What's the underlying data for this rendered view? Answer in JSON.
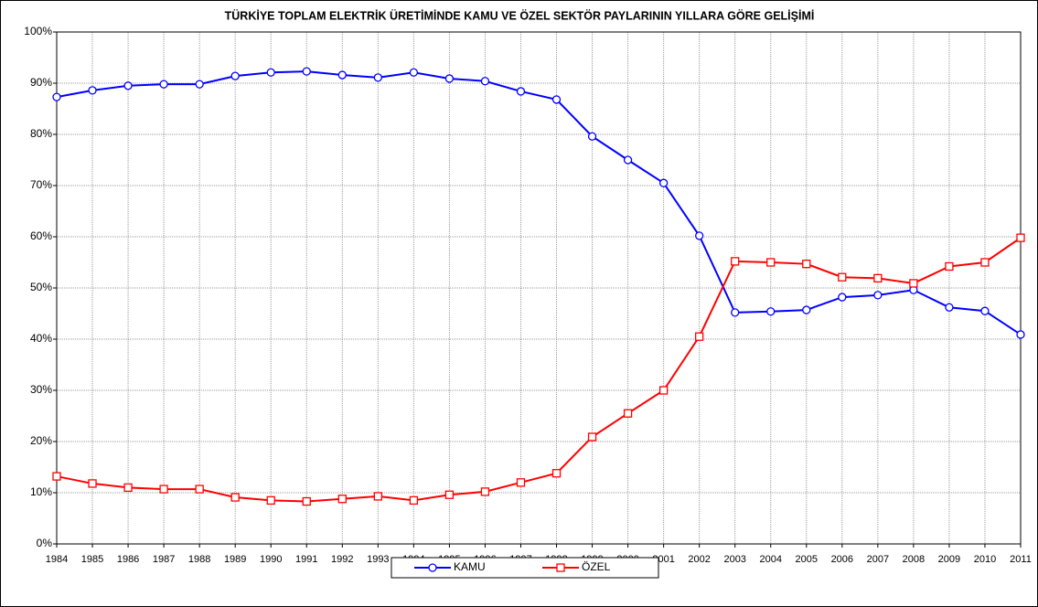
{
  "chart_data": {
    "type": "line",
    "title": "TÜRKİYE TOPLAM ELEKTRİK ÜRETİMİNDE KAMU VE ÖZEL SEKTÖR PAYLARININ YILLARA GÖRE GELİŞİMİ",
    "categories": [
      "1984",
      "1985",
      "1986",
      "1987",
      "1988",
      "1989",
      "1990",
      "1991",
      "1992",
      "1993",
      "1994",
      "1995",
      "1996",
      "1997",
      "1998",
      "1999",
      "2000",
      "2001",
      "2002",
      "2003",
      "2004",
      "2005",
      "2006",
      "2007",
      "2008",
      "2009",
      "2010",
      "2011"
    ],
    "series": [
      {
        "name": "KAMU",
        "color": "#0000ff",
        "marker": "circle",
        "values": [
          87.3,
          88.6,
          89.5,
          89.8,
          89.8,
          91.4,
          92.1,
          92.3,
          91.6,
          91.1,
          92.1,
          90.9,
          90.4,
          88.4,
          86.8,
          79.6,
          75.0,
          70.5,
          60.2,
          45.2,
          45.4,
          45.7,
          48.2,
          48.6,
          49.6,
          46.2,
          45.5,
          40.9
        ]
      },
      {
        "name": "ÖZEL",
        "color": "#ff0000",
        "marker": "square",
        "values": [
          13.2,
          11.8,
          11.0,
          10.7,
          10.7,
          9.1,
          8.5,
          8.3,
          8.8,
          9.3,
          8.5,
          9.6,
          10.2,
          12.0,
          13.8,
          20.9,
          25.5,
          30.0,
          40.5,
          55.2,
          55.0,
          54.7,
          52.1,
          51.9,
          50.9,
          54.2,
          55.0,
          59.8
        ]
      }
    ],
    "ylim": [
      0,
      100
    ],
    "yticks": [
      {
        "value": 0,
        "label": "0%"
      },
      {
        "value": 10,
        "label": "10%"
      },
      {
        "value": 20,
        "label": "20%"
      },
      {
        "value": 30,
        "label": "30%"
      },
      {
        "value": 40,
        "label": "40%"
      },
      {
        "value": 50,
        "label": "50%"
      },
      {
        "value": 60,
        "label": "60%"
      },
      {
        "value": 70,
        "label": "70%"
      },
      {
        "value": 80,
        "label": "80%"
      },
      {
        "value": 90,
        "label": "90%"
      },
      {
        "value": 100,
        "label": "100%"
      }
    ],
    "grid": true,
    "legend": "bottom"
  }
}
